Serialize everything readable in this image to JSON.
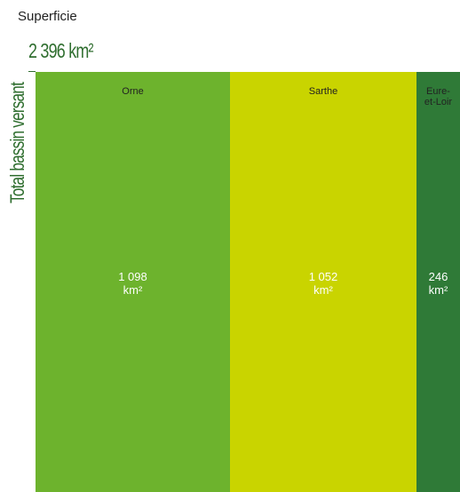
{
  "title": "Superficie",
  "total": {
    "value_label": "2 396 km²",
    "label": "Total bassin versant"
  },
  "chart_data": {
    "type": "bar",
    "orientation": "stacked-horizontal-mosaic",
    "title": "Superficie",
    "total": 2396,
    "unit": "km²",
    "categories": [
      "Orne",
      "Sarthe",
      "Eure-\net-Loir"
    ],
    "values": [
      1098,
      1052,
      246
    ],
    "value_labels": [
      "1 098",
      "1 052",
      "246"
    ],
    "colors": [
      "#6db32d",
      "#c9d400",
      "#2f7a37"
    ]
  }
}
